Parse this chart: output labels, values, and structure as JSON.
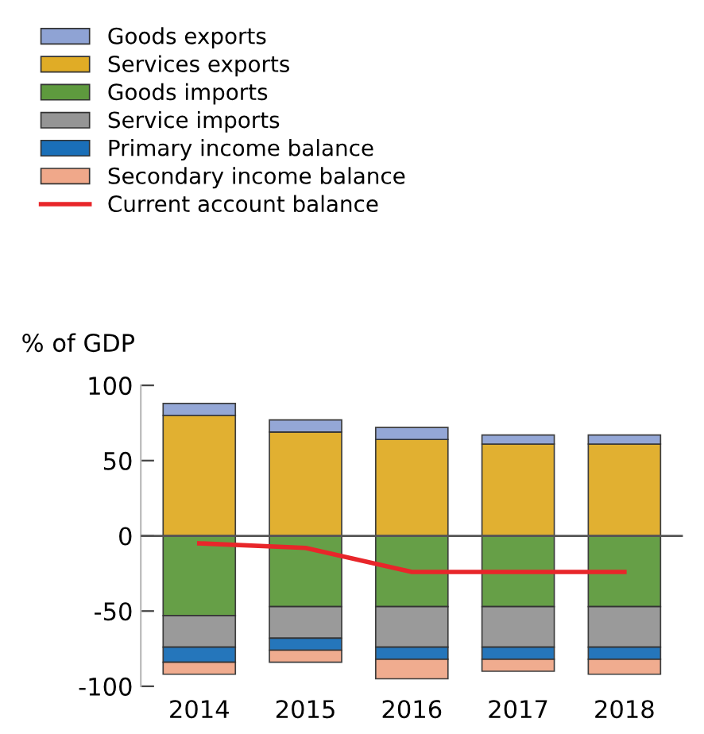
{
  "chart_data": {
    "type": "bar",
    "stacked": true,
    "ylabel": "% of GDP",
    "categories": [
      "2014",
      "2015",
      "2016",
      "2017",
      "2018"
    ],
    "series": [
      {
        "name": "Services exports",
        "color": "#e0ac26",
        "values": [
          80,
          69,
          64,
          61,
          61
        ]
      },
      {
        "name": "Goods exports",
        "color": "#8fa3d4",
        "values": [
          8,
          8,
          8,
          6,
          6
        ]
      },
      {
        "name": "Goods imports",
        "color": "#5e9a3e",
        "values": [
          -53,
          -47,
          -47,
          -47,
          -47
        ]
      },
      {
        "name": "Service imports",
        "color": "#959595",
        "values": [
          -21,
          -21,
          -27,
          -27,
          -27
        ]
      },
      {
        "name": "Primary income balance",
        "color": "#1a6fb8",
        "values": [
          -10,
          -8,
          -8,
          -8,
          -8
        ]
      },
      {
        "name": "Secondary income balance",
        "color": "#f0a88a",
        "values": [
          -8,
          -8,
          -13,
          -8,
          -10
        ]
      },
      {
        "name": "Current account balance",
        "color": "#e8262a",
        "type": "line",
        "values": [
          -5,
          -8,
          -24,
          -24,
          -24
        ]
      }
    ],
    "ylim": [
      -100,
      100
    ],
    "yticks": [
      -100,
      -50,
      0,
      50,
      100
    ],
    "ref_lines": [
      {
        "axis": "y",
        "value": 0,
        "color": "#555555"
      }
    ],
    "grid": false,
    "legend": "top left"
  }
}
